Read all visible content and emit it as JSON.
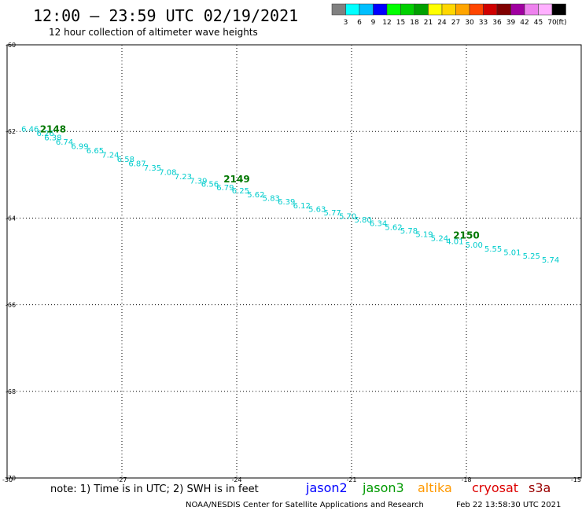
{
  "title": "12:00 – 23:59 UTC 02/19/2021",
  "subtitle": "12 hour collection of altimeter wave heights",
  "colorbar": {
    "labels": [
      "3",
      "6",
      "9",
      "12",
      "15",
      "18",
      "21",
      "24",
      "27",
      "30",
      "33",
      "36",
      "39",
      "42",
      "45",
      "70"
    ],
    "unit": "(ft)",
    "colors": [
      "#808080",
      "#00ffff",
      "#00bfff",
      "#0000ff",
      "#00ff00",
      "#00d000",
      "#00a000",
      "#ffff00",
      "#ffd700",
      "#ffa500",
      "#ff4500",
      "#d00000",
      "#800000",
      "#a000a0",
      "#ee82ee",
      "#ffb0ff",
      "#000000"
    ]
  },
  "note": "note: 1) Time is in UTC; 2) SWH is in feet",
  "legend": [
    {
      "name": "jason2",
      "color": "#0000ff"
    },
    {
      "name": "jason3",
      "color": "#009900"
    },
    {
      "name": "altika",
      "color": "#ff9900"
    },
    {
      "name": "cryosat",
      "color": "#dd0000"
    },
    {
      "name": "s3a",
      "color": "#990000"
    }
  ],
  "footer": {
    "credit": "NOAA/NESDIS Center for Satellite Applications and Research",
    "timestamp": "Feb 22 13:58:30 UTC 2021"
  },
  "chart_data": {
    "type": "scatter",
    "x_ticks": [
      "-30",
      "-27",
      "-24",
      "-21",
      "-18",
      "-15"
    ],
    "y_ticks": [
      "-60",
      "-62",
      "-64",
      "-66",
      "-68",
      "-70"
    ],
    "xlim": [
      -30,
      -15
    ],
    "ylim": [
      -70,
      -60
    ],
    "grid": true,
    "accent_color": "#00cccc",
    "series": [
      {
        "name": "jason3",
        "points": [
          {
            "x": -29.4,
            "y": -61.95,
            "label": "6.46"
          },
          {
            "x": -29.0,
            "y": -62.05,
            "label": "6.26"
          },
          {
            "x": -28.8,
            "y": -62.15,
            "label": "6.38"
          },
          {
            "x": -28.5,
            "y": -62.25,
            "label": "6.74"
          },
          {
            "x": -28.1,
            "y": -62.35,
            "label": "6.99"
          },
          {
            "x": -27.7,
            "y": -62.45,
            "label": "6.65"
          },
          {
            "x": -27.3,
            "y": -62.55,
            "label": "7.24"
          },
          {
            "x": -26.9,
            "y": -62.65,
            "label": "6.58"
          },
          {
            "x": -26.6,
            "y": -62.75,
            "label": "6.87"
          },
          {
            "x": -26.2,
            "y": -62.85,
            "label": "7.35"
          },
          {
            "x": -25.8,
            "y": -62.95,
            "label": "7.08"
          },
          {
            "x": -25.4,
            "y": -63.05,
            "label": "7.23"
          },
          {
            "x": -25.0,
            "y": -63.15,
            "label": "7.39"
          },
          {
            "x": -24.7,
            "y": -63.22,
            "label": "6.56"
          },
          {
            "x": -24.3,
            "y": -63.3,
            "label": "6.79"
          },
          {
            "x": -23.9,
            "y": -63.38,
            "label": "6.25"
          },
          {
            "x": -23.5,
            "y": -63.47,
            "label": "5.62"
          },
          {
            "x": -23.1,
            "y": -63.55,
            "label": "5.83"
          },
          {
            "x": -22.7,
            "y": -63.63,
            "label": "6.39"
          },
          {
            "x": -22.3,
            "y": -63.72,
            "label": "6.12"
          },
          {
            "x": -21.9,
            "y": -63.8,
            "label": "5.63"
          },
          {
            "x": -21.5,
            "y": -63.88,
            "label": "5.77"
          },
          {
            "x": -21.1,
            "y": -63.97,
            "label": "5.70"
          },
          {
            "x": -20.7,
            "y": -64.05,
            "label": "5.80"
          },
          {
            "x": -20.3,
            "y": -64.13,
            "label": "6.34"
          },
          {
            "x": -19.9,
            "y": -64.22,
            "label": "5.62"
          },
          {
            "x": -19.5,
            "y": -64.3,
            "label": "5.78"
          },
          {
            "x": -19.1,
            "y": -64.38,
            "label": "5.19"
          },
          {
            "x": -18.7,
            "y": -64.47,
            "label": "5.24"
          },
          {
            "x": -18.3,
            "y": -64.55,
            "label": "4.01"
          },
          {
            "x": -17.8,
            "y": -64.63,
            "label": "5.00"
          },
          {
            "x": -17.3,
            "y": -64.72,
            "label": "5.55"
          },
          {
            "x": -16.8,
            "y": -64.8,
            "label": "5.01"
          },
          {
            "x": -16.3,
            "y": -64.88,
            "label": "5.25"
          },
          {
            "x": -15.8,
            "y": -64.97,
            "label": "5.74"
          }
        ]
      }
    ],
    "annotations": [
      {
        "text": "2148",
        "x": -28.8,
        "y": -61.95
      },
      {
        "text": "2149",
        "x": -24.0,
        "y": -63.1
      },
      {
        "text": "2150",
        "x": -18.0,
        "y": -64.4
      }
    ]
  }
}
